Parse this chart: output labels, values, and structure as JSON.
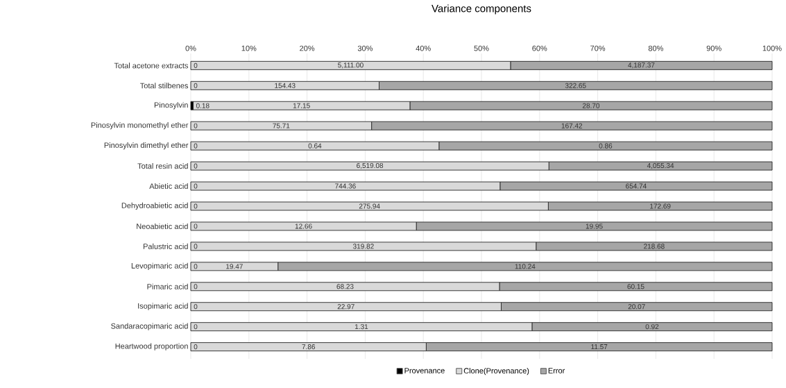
{
  "chart_data": {
    "type": "bar",
    "orientation": "horizontal",
    "stacked": true,
    "title": "Variance components",
    "categories": [
      "Total acetone extracts",
      "Total stilbenes",
      "Pinosylvin",
      "Pinosylvin monomethyl ether",
      "Pinosylvin dimethyl ether",
      "Total resin acid",
      "Abietic acid",
      "Dehydroabietic acid",
      "Neoabietic acid",
      "Palustric acid",
      "Levopimaric acid",
      "Pimaric acid",
      "Isopimaric acid",
      "Sandaracopimaric acid",
      "Heartwood proportion"
    ],
    "series": [
      {
        "name": "Provenance",
        "color": "#000000",
        "values": [
          0,
          0,
          0.4,
          0,
          0,
          0,
          0,
          0,
          0,
          0,
          0,
          0,
          0,
          0,
          0
        ]
      },
      {
        "name": "Clone(Provenance)",
        "color": "#d9d9d9",
        "values": [
          55.0,
          32.4,
          37.3,
          31.1,
          42.7,
          61.6,
          53.2,
          61.5,
          38.8,
          59.4,
          15.0,
          53.1,
          53.4,
          58.7,
          40.5
        ]
      },
      {
        "name": "Error",
        "color": "#a6a6a6",
        "values": [
          45.0,
          67.6,
          62.3,
          68.9,
          57.3,
          38.4,
          46.8,
          38.5,
          61.2,
          40.6,
          85.0,
          46.9,
          46.6,
          41.3,
          59.5
        ]
      }
    ],
    "annotations": [
      "0",
      "5,111.00",
      "4,187.37",
      "0",
      "154.43",
      "322.65",
      "0.18",
      "17.15",
      "28.70",
      "0",
      "75.71",
      "167.42",
      "0",
      "0.64",
      "0.86",
      "0",
      "6,519.08",
      "4,055.34",
      "0",
      "744.36",
      "654.74",
      "0",
      "275.94",
      "172.69",
      "0",
      "12.66",
      "19.95",
      "0",
      "319.82",
      "218.68",
      "0",
      "19.47",
      "110.24",
      "0",
      "68.23",
      "60.15",
      "0",
      "22.97",
      "20.07",
      "0",
      "1.31",
      "0.92",
      "0",
      "7.86",
      "11.57"
    ],
    "xlim": [
      0,
      100
    ],
    "xticks": [
      {
        "value": 0,
        "label": "0%"
      },
      {
        "value": 10,
        "label": "10%"
      },
      {
        "value": 20,
        "label": "20%"
      },
      {
        "value": 30,
        "label": "30%"
      },
      {
        "value": 40,
        "label": "40%"
      },
      {
        "value": 50,
        "label": "50%"
      },
      {
        "value": 60,
        "label": "60%"
      },
      {
        "value": 70,
        "label": "70%"
      },
      {
        "value": 80,
        "label": "80%"
      },
      {
        "value": 90,
        "label": "90%"
      },
      {
        "value": 100,
        "label": "100%"
      }
    ],
    "grid": "x",
    "legend": "bottom"
  }
}
